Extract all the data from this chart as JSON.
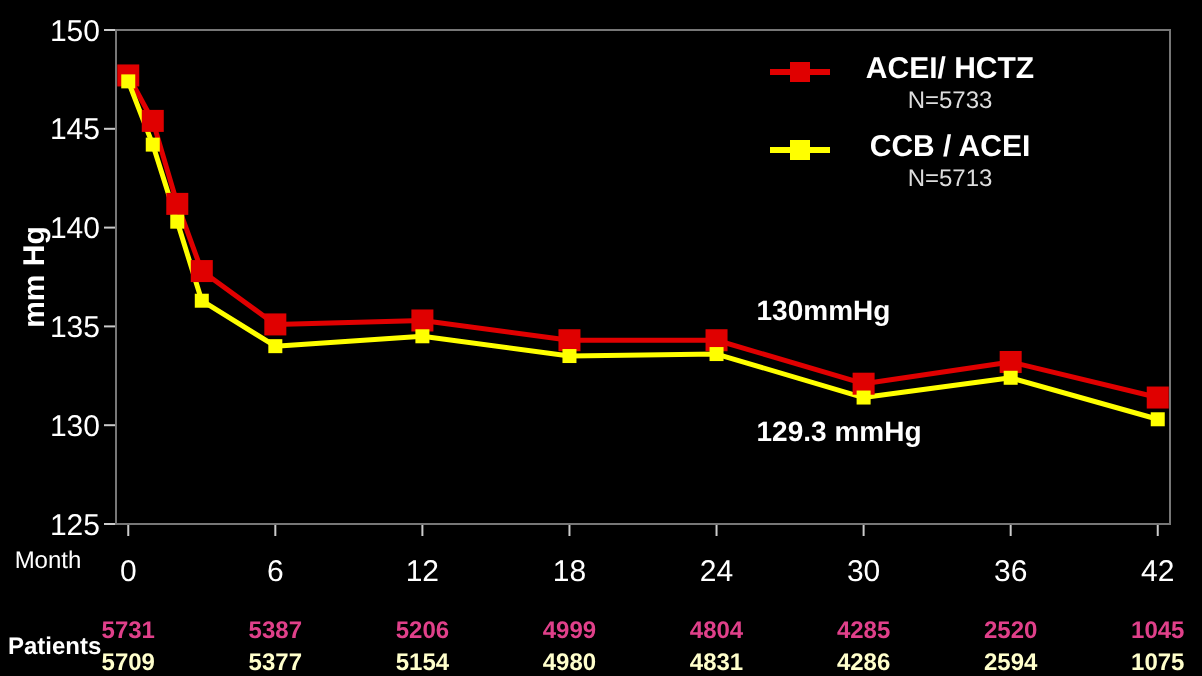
{
  "chart_data": {
    "type": "line",
    "ylabel": "mm Hg",
    "xlabel": "Month",
    "x": [
      0,
      1,
      2,
      3,
      6,
      12,
      18,
      24,
      30,
      36,
      42
    ],
    "series": [
      {
        "name": "ACEI/ HCTZ",
        "color": "#e00000",
        "values": [
          147.7,
          145.4,
          141.2,
          137.8,
          135.1,
          135.3,
          134.3,
          134.3,
          132.1,
          133.2,
          131.4
        ]
      },
      {
        "name": "CCB / ACEI",
        "color": "#ffff00",
        "values": [
          147.4,
          144.2,
          140.3,
          136.3,
          134.0,
          134.5,
          133.5,
          133.6,
          131.4,
          132.4,
          130.3
        ]
      }
    ],
    "xlim": [
      -0.5,
      42.5
    ],
    "xticks": [
      0,
      6,
      12,
      18,
      24,
      30,
      36,
      42
    ],
    "ylim": [
      125,
      150
    ],
    "yticks": [
      125,
      130,
      135,
      140,
      145,
      150
    ],
    "marker": "square",
    "line_style": "solid",
    "legend": "top right",
    "annotations": [
      "N=5733",
      "N=5713",
      "130mmHg",
      "129.3 mmHg",
      "Patients",
      "5731",
      "5387",
      "5206",
      "4999",
      "4804",
      "4285",
      "2520",
      "1045",
      "5709",
      "5377",
      "5154",
      "4980",
      "4831",
      "4286",
      "2594",
      "1075"
    ]
  }
}
